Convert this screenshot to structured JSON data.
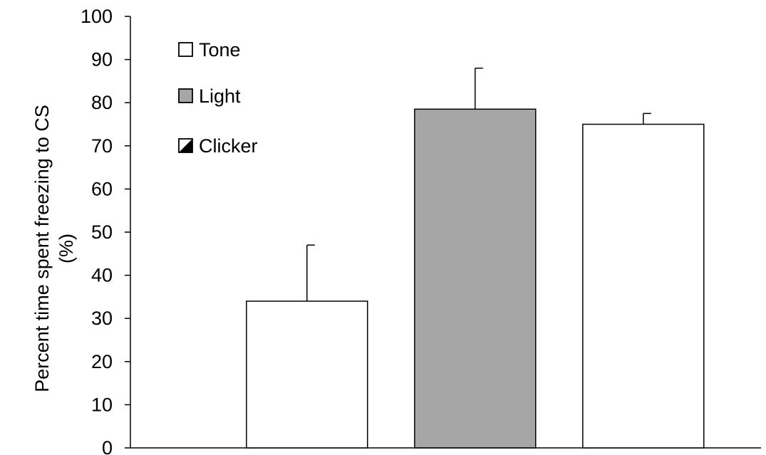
{
  "chart_data": {
    "type": "bar",
    "categories": [
      "Tone",
      "Light",
      "Clicker"
    ],
    "values": [
      34,
      78.5,
      75
    ],
    "error_bars": [
      13,
      9.5,
      2.5
    ],
    "ylabel_line1": "Percent time spent freezing to CS",
    "ylabel_line2": "(%)",
    "ylim": [
      0,
      100
    ],
    "yticks": [
      0,
      10,
      20,
      30,
      40,
      50,
      60,
      70,
      80,
      90,
      100
    ],
    "grid": false,
    "legend_placement": "top-left",
    "legend": [
      {
        "label": "Tone",
        "glyph": "□",
        "pattern": "white"
      },
      {
        "label": "Light",
        "glyph": "■",
        "pattern": "gray"
      },
      {
        "label": "Clicker",
        "glyph": "◪",
        "pattern": "hatched"
      }
    ],
    "bar_colors": [
      "#ffffff",
      "#a6a6a6",
      "#ffffff"
    ],
    "bar_stroke": "#000000"
  }
}
